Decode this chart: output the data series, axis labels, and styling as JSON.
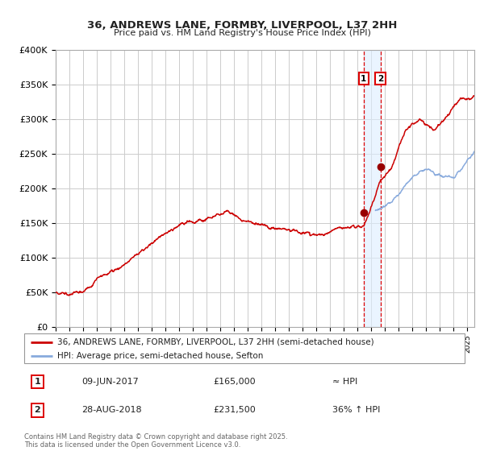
{
  "title1": "36, ANDREWS LANE, FORMBY, LIVERPOOL, L37 2HH",
  "title2": "Price paid vs. HM Land Registry's House Price Index (HPI)",
  "legend1": "36, ANDREWS LANE, FORMBY, LIVERPOOL, L37 2HH (semi-detached house)",
  "legend2": "HPI: Average price, semi-detached house, Sefton",
  "sale1_date": "09-JUN-2017",
  "sale1_price": "£165,000",
  "sale1_hpi": "≈ HPI",
  "sale2_date": "28-AUG-2018",
  "sale2_price": "£231,500",
  "sale2_hpi": "36% ↑ HPI",
  "footer": "Contains HM Land Registry data © Crown copyright and database right 2025.\nThis data is licensed under the Open Government Licence v3.0.",
  "ylim": [
    0,
    400000
  ],
  "yticks": [
    0,
    50000,
    100000,
    150000,
    200000,
    250000,
    300000,
    350000,
    400000
  ],
  "ytick_labels": [
    "£0",
    "£50K",
    "£100K",
    "£150K",
    "£200K",
    "£250K",
    "£300K",
    "£350K",
    "£400K"
  ],
  "red_color": "#cc0000",
  "blue_color": "#88aadd",
  "marker_color": "#990000",
  "vline_color": "#dd0000",
  "shade_color": "#ddeeff",
  "background": "#ffffff",
  "grid_color": "#cccccc",
  "sale1_year": 2017.44,
  "sale1_value": 165000,
  "sale2_year": 2018.66,
  "sale2_value": 231500,
  "xlim_start": 1995,
  "xlim_end": 2025.5
}
